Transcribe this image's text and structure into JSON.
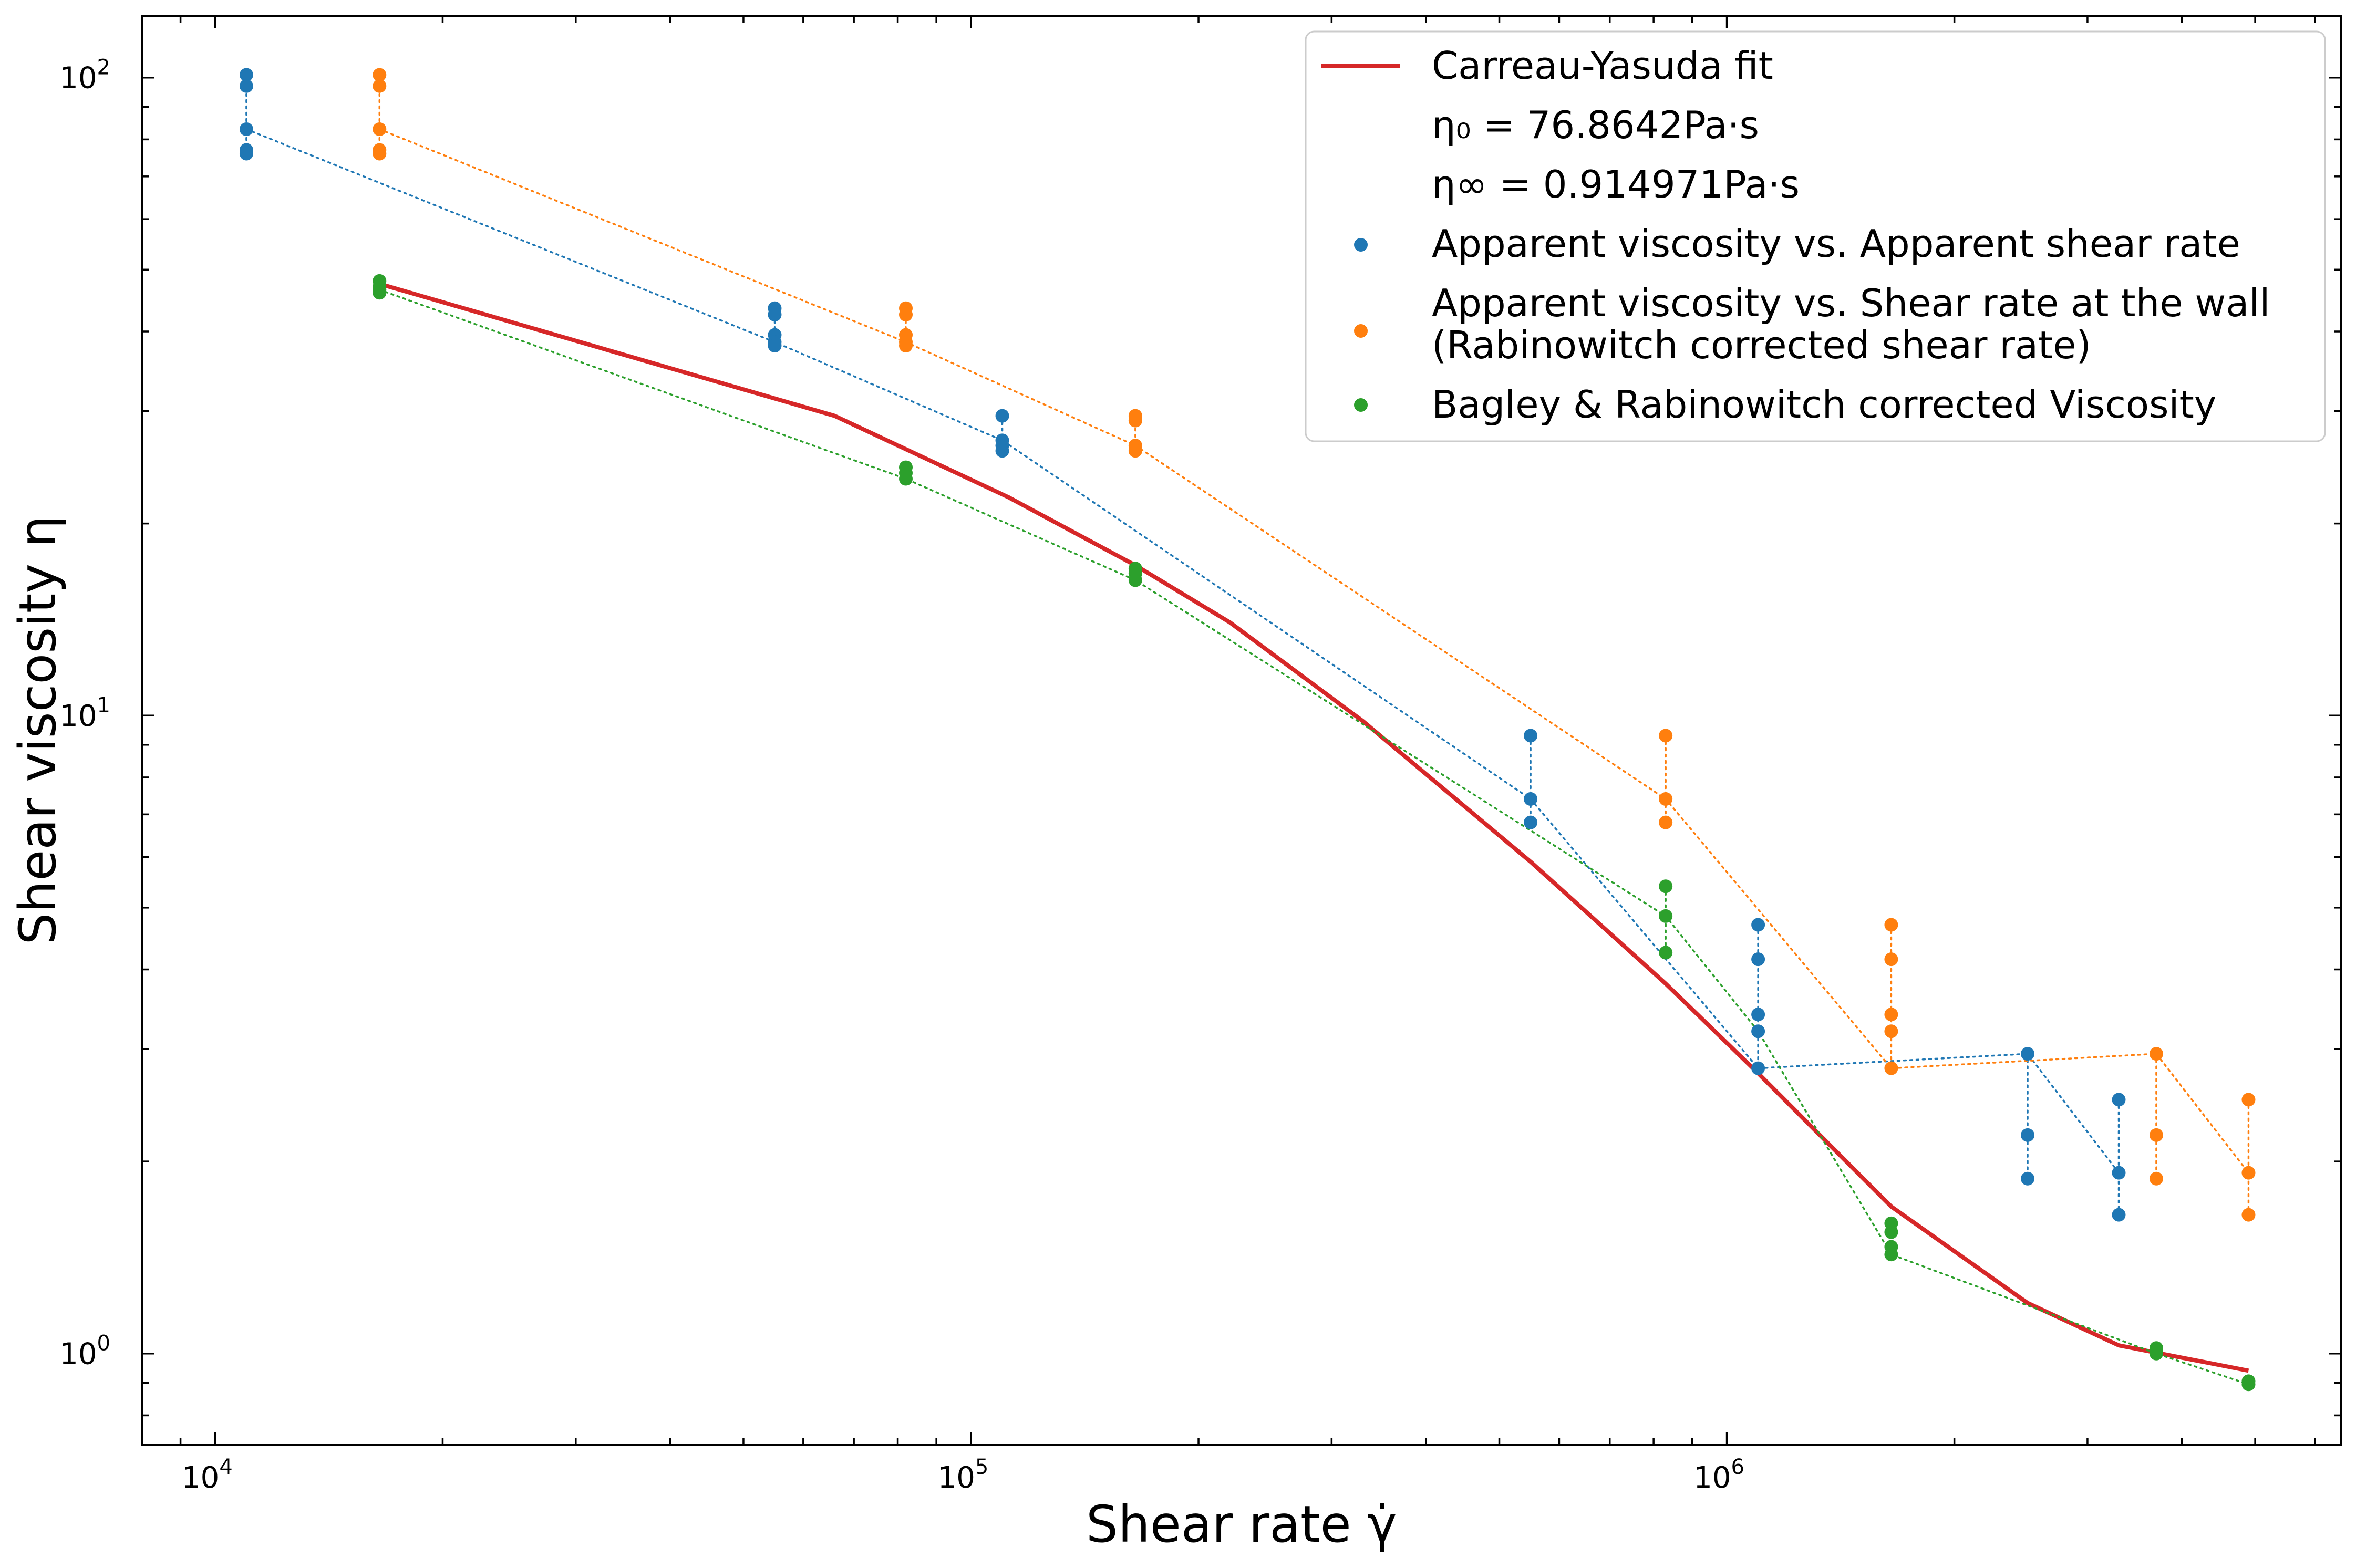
{
  "chart_data": {
    "type": "scatter",
    "xlabel": "Shear rate γ̇",
    "ylabel": "Shear viscosity η",
    "xscale": "log",
    "yscale": "log",
    "xlim": [
      8000,
      6500000
    ],
    "ylim": [
      0.72,
      125
    ],
    "grid": false,
    "legend_position": "top-right",
    "x_ticks": [
      {
        "value": 10000,
        "base": "10",
        "exp": "4"
      },
      {
        "value": 100000,
        "base": "10",
        "exp": "5"
      },
      {
        "value": 1000000,
        "base": "10",
        "exp": "6"
      }
    ],
    "y_ticks": [
      {
        "value": 1,
        "base": "10",
        "exp": "0"
      },
      {
        "value": 10,
        "base": "10",
        "exp": "1"
      },
      {
        "value": 100,
        "base": "10",
        "exp": "2"
      }
    ],
    "legend": {
      "fit": "Carreau-Yasuda fit",
      "eta0": "η₀ = 76.8642Pa·s",
      "eta_inf": "η∞ = 0.914971Pa·s",
      "apparent_line1": "Apparent viscosity vs. Apparent shear rate",
      "wall_line1": "Apparent viscosity vs. Shear rate at the wall",
      "wall_line2": "(Rabinowitch corrected shear rate)",
      "bagley_line1": "Bagley & Rabinowitch corrected Viscosity"
    },
    "fit_curve": {
      "name": "Carreau-Yasuda fit",
      "color": "#d62728",
      "x": [
        16500,
        66000,
        112000,
        165000,
        220000,
        330000,
        550000,
        830000,
        1100000,
        1650000,
        2500000,
        3300000,
        4900000
      ],
      "y": [
        47.5,
        29.5,
        22.0,
        17.2,
        14.0,
        9.8,
        5.9,
        3.8,
        2.75,
        1.7,
        1.2,
        1.03,
        0.94
      ]
    },
    "series": [
      {
        "name": "Apparent viscosity vs. Apparent shear rate",
        "color": "#1f77b4",
        "points": [
          {
            "x": 11000,
            "y": [
              101,
              97,
              83,
              77,
              76
            ]
          },
          {
            "x": 55000,
            "y": [
              43.5,
              42.5,
              39.5,
              38.5,
              38
            ]
          },
          {
            "x": 110000,
            "y": [
              29.5,
              27,
              26.5,
              26
            ]
          },
          {
            "x": 550000,
            "y": [
              9.3,
              7.4,
              6.8
            ]
          },
          {
            "x": 1100000,
            "y": [
              4.7,
              4.15,
              3.4,
              3.2,
              2.8
            ]
          },
          {
            "x": 2500000,
            "y": [
              2.95,
              2.2,
              1.88
            ]
          },
          {
            "x": 3300000,
            "y": [
              2.5,
              1.92,
              1.65
            ]
          }
        ],
        "line_x": [
          11000,
          55000,
          110000,
          550000,
          1100000,
          2500000,
          3300000
        ],
        "line_y": [
          83,
          38.5,
          27,
          7.4,
          2.8,
          2.95,
          1.92
        ]
      },
      {
        "name": "Apparent viscosity vs. Shear rate at the wall",
        "color": "#ff7f0e",
        "points": [
          {
            "x": 16500,
            "y": [
              101,
              97,
              83,
              77,
              76
            ]
          },
          {
            "x": 82000,
            "y": [
              43.5,
              42.5,
              39.5,
              38.5,
              38
            ]
          },
          {
            "x": 165000,
            "y": [
              29.5,
              29,
              26.5,
              26
            ]
          },
          {
            "x": 830000,
            "y": [
              9.3,
              7.4,
              6.8
            ]
          },
          {
            "x": 1650000,
            "y": [
              4.7,
              4.15,
              3.4,
              3.2,
              2.8
            ]
          },
          {
            "x": 3700000,
            "y": [
              2.95,
              2.2,
              1.88
            ]
          },
          {
            "x": 4900000,
            "y": [
              2.5,
              1.92,
              1.65
            ]
          }
        ],
        "line_x": [
          16500,
          82000,
          165000,
          830000,
          1650000,
          3700000,
          4900000
        ],
        "line_y": [
          83,
          38.5,
          26.5,
          7.4,
          2.8,
          2.95,
          1.92
        ]
      },
      {
        "name": "Bagley & Rabinowitch corrected Viscosity",
        "color": "#2ca02c",
        "points": [
          {
            "x": 16500,
            "y": [
              48,
              47,
              46.5,
              46
            ]
          },
          {
            "x": 82000,
            "y": [
              24.5,
              24,
              23.5
            ]
          },
          {
            "x": 165000,
            "y": [
              17,
              16.7,
              16.3
            ]
          },
          {
            "x": 830000,
            "y": [
              5.4,
              4.85,
              4.25
            ]
          },
          {
            "x": 1650000,
            "y": [
              1.6,
              1.55,
              1.47,
              1.43
            ]
          },
          {
            "x": 3700000,
            "y": [
              1.02,
              1.0
            ]
          },
          {
            "x": 4900000,
            "y": [
              0.905,
              0.895
            ]
          }
        ],
        "line_x": [
          16500,
          82000,
          165000,
          830000,
          1100000,
          1650000,
          3700000,
          4900000
        ],
        "line_y": [
          46.5,
          23.5,
          16.3,
          4.85,
          3.2,
          1.43,
          1.0,
          0.895
        ]
      }
    ]
  }
}
